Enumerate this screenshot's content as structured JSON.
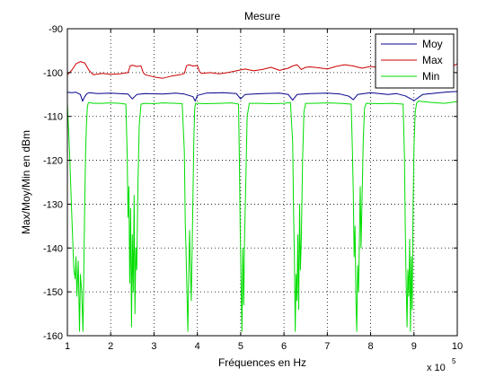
{
  "chart_data": {
    "type": "line",
    "title": "Mesure",
    "xlabel": "Fréquences en Hz",
    "ylabel": "Max/Moy/Min en dBm",
    "x_multiplier_label": "x 10",
    "x_multiplier_exponent": "5",
    "xlim": [
      1,
      10
    ],
    "ylim": [
      -160,
      -90
    ],
    "x_ticks": [
      1,
      2,
      3,
      4,
      5,
      6,
      7,
      8,
      9,
      10
    ],
    "y_ticks": [
      -90,
      -100,
      -110,
      -120,
      -130,
      -140,
      -150,
      -160
    ],
    "grid": true,
    "legend_position": "top-right",
    "series": [
      {
        "name": "Moy",
        "color": "#00008b",
        "x": [
          1.0,
          1.1,
          1.2,
          1.3,
          1.35,
          1.4,
          1.45,
          1.5,
          1.7,
          2.0,
          2.4,
          2.5,
          2.6,
          2.8,
          3.2,
          3.5,
          3.7,
          3.9,
          3.95,
          4.0,
          4.2,
          4.6,
          4.9,
          5.0,
          5.1,
          5.5,
          5.9,
          6.1,
          6.2,
          6.3,
          6.6,
          7.0,
          7.3,
          7.5,
          7.6,
          7.7,
          8.0,
          8.4,
          8.6,
          8.8,
          9.0,
          9.2,
          9.4,
          9.6,
          9.8,
          10.0
        ],
        "y": [
          -104.5,
          -104.6,
          -104.5,
          -105.0,
          -106.5,
          -105.5,
          -104.8,
          -104.6,
          -104.8,
          -104.7,
          -104.9,
          -106.0,
          -105.0,
          -104.8,
          -104.9,
          -104.7,
          -104.9,
          -105.5,
          -106.5,
          -105.2,
          -104.7,
          -104.6,
          -104.8,
          -106.0,
          -105.0,
          -104.8,
          -104.7,
          -105.0,
          -106.3,
          -105.0,
          -104.8,
          -104.7,
          -104.9,
          -105.4,
          -106.2,
          -105.0,
          -104.6,
          -105.0,
          -104.8,
          -105.3,
          -106.4,
          -105.0,
          -104.8,
          -104.6,
          -104.4,
          -104.3
        ]
      },
      {
        "name": "Max",
        "color": "#cc0000",
        "x": [
          1.0,
          1.1,
          1.2,
          1.3,
          1.4,
          1.5,
          1.55,
          1.6,
          1.8,
          2.0,
          2.2,
          2.4,
          2.45,
          2.5,
          2.6,
          2.7,
          2.75,
          2.8,
          3.0,
          3.2,
          3.4,
          3.6,
          3.7,
          3.75,
          3.8,
          3.9,
          4.0,
          4.05,
          4.1,
          4.3,
          4.5,
          4.7,
          4.9,
          5.1,
          5.3,
          5.5,
          5.7,
          5.9,
          6.1,
          6.2,
          6.3,
          6.4,
          6.5,
          6.6,
          6.8,
          7.0,
          7.2,
          7.4,
          7.6,
          7.8,
          8.0,
          8.2,
          8.4,
          8.6,
          8.8,
          9.0,
          9.2,
          9.4,
          9.6,
          9.8,
          9.9,
          10.0
        ],
        "y": [
          -100.5,
          -99.5,
          -98.0,
          -97.5,
          -97.8,
          -99.5,
          -100.0,
          -100.5,
          -100.2,
          -100.4,
          -100.3,
          -100.0,
          -98.5,
          -98.3,
          -98.6,
          -98.5,
          -100.0,
          -100.5,
          -101.0,
          -101.3,
          -100.8,
          -100.5,
          -100.2,
          -98.5,
          -98.2,
          -98.5,
          -98.4,
          -99.8,
          -100.2,
          -100.0,
          -100.3,
          -100.0,
          -99.6,
          -99.2,
          -99.6,
          -99.3,
          -98.8,
          -99.5,
          -99.0,
          -98.5,
          -98.2,
          -99.3,
          -98.8,
          -98.7,
          -98.9,
          -99.2,
          -98.6,
          -98.2,
          -98.5,
          -99.0,
          -98.6,
          -98.9,
          -98.7,
          -98.8,
          -98.5,
          -98.3,
          -98.0,
          -98.4,
          -98.2,
          -97.9,
          -98.5,
          -98.0
        ]
      },
      {
        "name": "Min",
        "color": "#00dd00",
        "x": [
          1.0,
          1.05,
          1.1,
          1.15,
          1.18,
          1.2,
          1.22,
          1.25,
          1.28,
          1.3,
          1.33,
          1.36,
          1.38,
          1.4,
          1.42,
          1.44,
          1.46,
          1.48,
          1.5,
          1.6,
          1.8,
          2.0,
          2.2,
          2.35,
          2.38,
          2.4,
          2.42,
          2.44,
          2.46,
          2.48,
          2.5,
          2.52,
          2.54,
          2.56,
          2.58,
          2.6,
          2.63,
          2.66,
          2.7,
          2.8,
          3.0,
          3.2,
          3.5,
          3.65,
          3.7,
          3.72,
          3.74,
          3.76,
          3.78,
          3.8,
          3.82,
          3.84,
          3.86,
          3.88,
          3.9,
          3.92,
          3.94,
          3.96,
          4.0,
          4.2,
          4.5,
          4.8,
          4.95,
          4.97,
          4.99,
          5.01,
          5.03,
          5.05,
          5.07,
          5.09,
          5.12,
          5.15,
          5.2,
          5.4,
          5.7,
          6.0,
          6.15,
          6.2,
          6.22,
          6.24,
          6.26,
          6.28,
          6.3,
          6.32,
          6.34,
          6.36,
          6.38,
          6.4,
          6.43,
          6.46,
          6.5,
          6.7,
          7.0,
          7.3,
          7.55,
          7.58,
          7.6,
          7.62,
          7.64,
          7.66,
          7.68,
          7.7,
          7.72,
          7.74,
          7.76,
          7.78,
          7.8,
          7.83,
          7.86,
          7.9,
          8.2,
          8.5,
          8.75,
          8.78,
          8.8,
          8.82,
          8.84,
          8.86,
          8.88,
          8.9,
          8.92,
          8.94,
          8.96,
          8.98,
          9.0,
          9.03,
          9.06,
          9.1,
          9.4,
          9.7,
          10.0
        ],
        "y": [
          -107.0,
          -118.0,
          -132.0,
          -145.0,
          -147.0,
          -142.0,
          -151.0,
          -143.0,
          -159.0,
          -146.0,
          -150.0,
          -159.0,
          -145.0,
          -130.0,
          -118.0,
          -112.0,
          -108.0,
          -107.0,
          -106.8,
          -107.0,
          -107.0,
          -106.9,
          -107.0,
          -107.2,
          -118.0,
          -133.0,
          -126.0,
          -148.0,
          -131.0,
          -158.0,
          -137.0,
          -150.0,
          -128.0,
          -155.0,
          -140.0,
          -145.0,
          -125.0,
          -112.0,
          -107.2,
          -107.0,
          -107.1,
          -106.9,
          -107.0,
          -107.1,
          -118.0,
          -134.0,
          -141.0,
          -150.0,
          -159.0,
          -147.0,
          -136.0,
          -145.0,
          -152.0,
          -140.0,
          -128.0,
          -115.0,
          -108.0,
          -107.0,
          -107.0,
          -107.1,
          -107.0,
          -106.9,
          -107.2,
          -119.0,
          -136.0,
          -148.0,
          -159.0,
          -140.0,
          -153.0,
          -138.0,
          -124.0,
          -110.0,
          -107.0,
          -107.0,
          -107.1,
          -107.0,
          -106.8,
          -116.0,
          -131.0,
          -142.0,
          -159.0,
          -146.0,
          -152.0,
          -137.0,
          -154.0,
          -130.0,
          -145.0,
          -138.0,
          -120.0,
          -109.0,
          -107.0,
          -107.0,
          -106.9,
          -107.0,
          -107.2,
          -118.0,
          -128.0,
          -142.0,
          -135.0,
          -152.0,
          -159.0,
          -144.0,
          -150.0,
          -139.0,
          -126.0,
          -140.0,
          -130.0,
          -115.0,
          -108.0,
          -107.0,
          -107.1,
          -107.0,
          -107.2,
          -119.0,
          -135.0,
          -148.0,
          -158.0,
          -145.0,
          -151.0,
          -138.0,
          -159.0,
          -142.0,
          -154.0,
          -131.0,
          -117.0,
          -109.0,
          -107.0,
          -106.5,
          -106.8,
          -107.0,
          -106.6
        ]
      }
    ]
  }
}
